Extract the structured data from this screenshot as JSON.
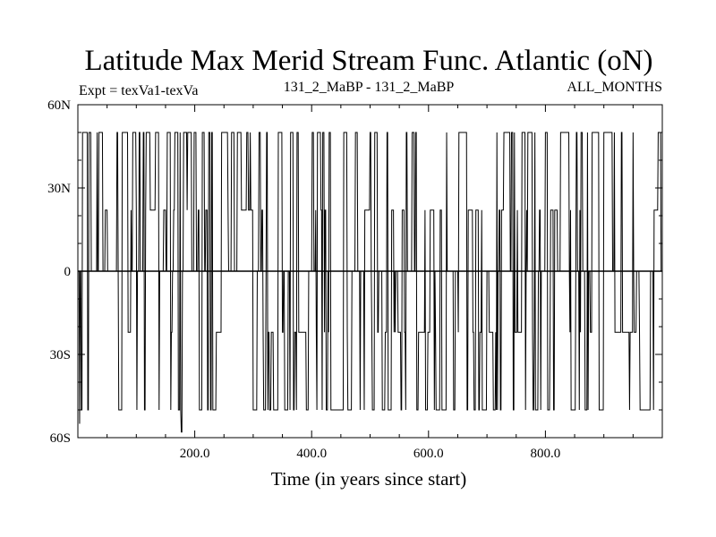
{
  "chart_data": {
    "type": "line",
    "title": "Latitude Max Merid Stream Func. Atlantic (oN)",
    "subtitle_left": "Expt = texVa1-texVa",
    "subtitle_center": "131_2_MaBP - 131_2_MaBP",
    "subtitle_right": "ALL_MONTHS",
    "xlabel": "Time (in years since start)",
    "ylabel": "",
    "xlim": [
      0,
      1000
    ],
    "ylim": [
      -60,
      60
    ],
    "x_ticks": [
      {
        "value": 200,
        "label": "200.0"
      },
      {
        "value": 400,
        "label": "400.0"
      },
      {
        "value": 600,
        "label": "600.0"
      },
      {
        "value": 800,
        "label": "800.0"
      }
    ],
    "y_ticks": [
      {
        "value": 60,
        "label": "60N"
      },
      {
        "value": 30,
        "label": "30N"
      },
      {
        "value": 0,
        "label": "0"
      },
      {
        "value": -30,
        "label": "30S"
      },
      {
        "value": -60,
        "label": "60S"
      }
    ],
    "zero_line": true,
    "grid": false,
    "series": [
      {
        "color": "#000000",
        "description": "Yearly latitude of max Atlantic meridional stream function, alternating between ~50N, ~22N, 0, ~-22S and ~-50S",
        "x_start": 1,
        "x_end": 1000,
        "levels": [
          50,
          22,
          0,
          -22,
          -50
        ]
      }
    ]
  }
}
